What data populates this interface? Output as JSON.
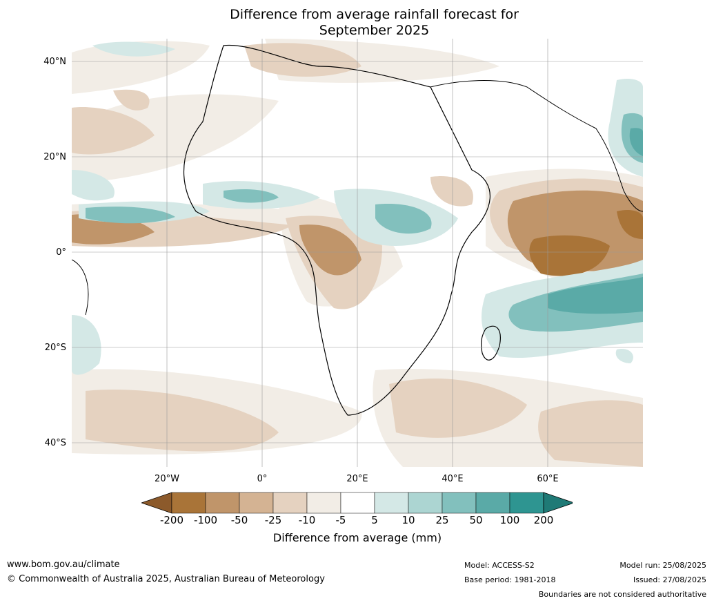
{
  "title_line1": "Difference from average rainfall forecast for",
  "title_line2": "September 2025",
  "lat_labels": [
    "40°N",
    "20°N",
    "0°",
    "20°S",
    "40°S"
  ],
  "lon_labels": [
    "20°W",
    "0°",
    "20°E",
    "40°E",
    "60°E"
  ],
  "colorbar": {
    "title": "Difference from average (mm)",
    "ticks": [
      "-200",
      "-100",
      "-50",
      "-25",
      "-10",
      "-5",
      "5",
      "10",
      "25",
      "50",
      "100",
      "200"
    ],
    "colors": [
      "#8c5a2b",
      "#a97438",
      "#c0956a",
      "#d4b393",
      "#e5d2c0",
      "#f2ede6",
      "#ffffff",
      "#d4e8e6",
      "#acd5d2",
      "#82c0bd",
      "#5aaaa7",
      "#2e9591",
      "#1f7a76"
    ]
  },
  "footer": {
    "website": "www.bom.gov.au/climate",
    "copyright": "© Commonwealth of Australia 2025, Australian Bureau of Meteorology",
    "model": "Model: ACCESS-S2",
    "base_period": "Base period: 1981-2018",
    "model_run": "Model run: 25/08/2025",
    "issued": "Issued: 27/08/2025",
    "disclaimer": "Boundaries are not considered authoritative"
  }
}
